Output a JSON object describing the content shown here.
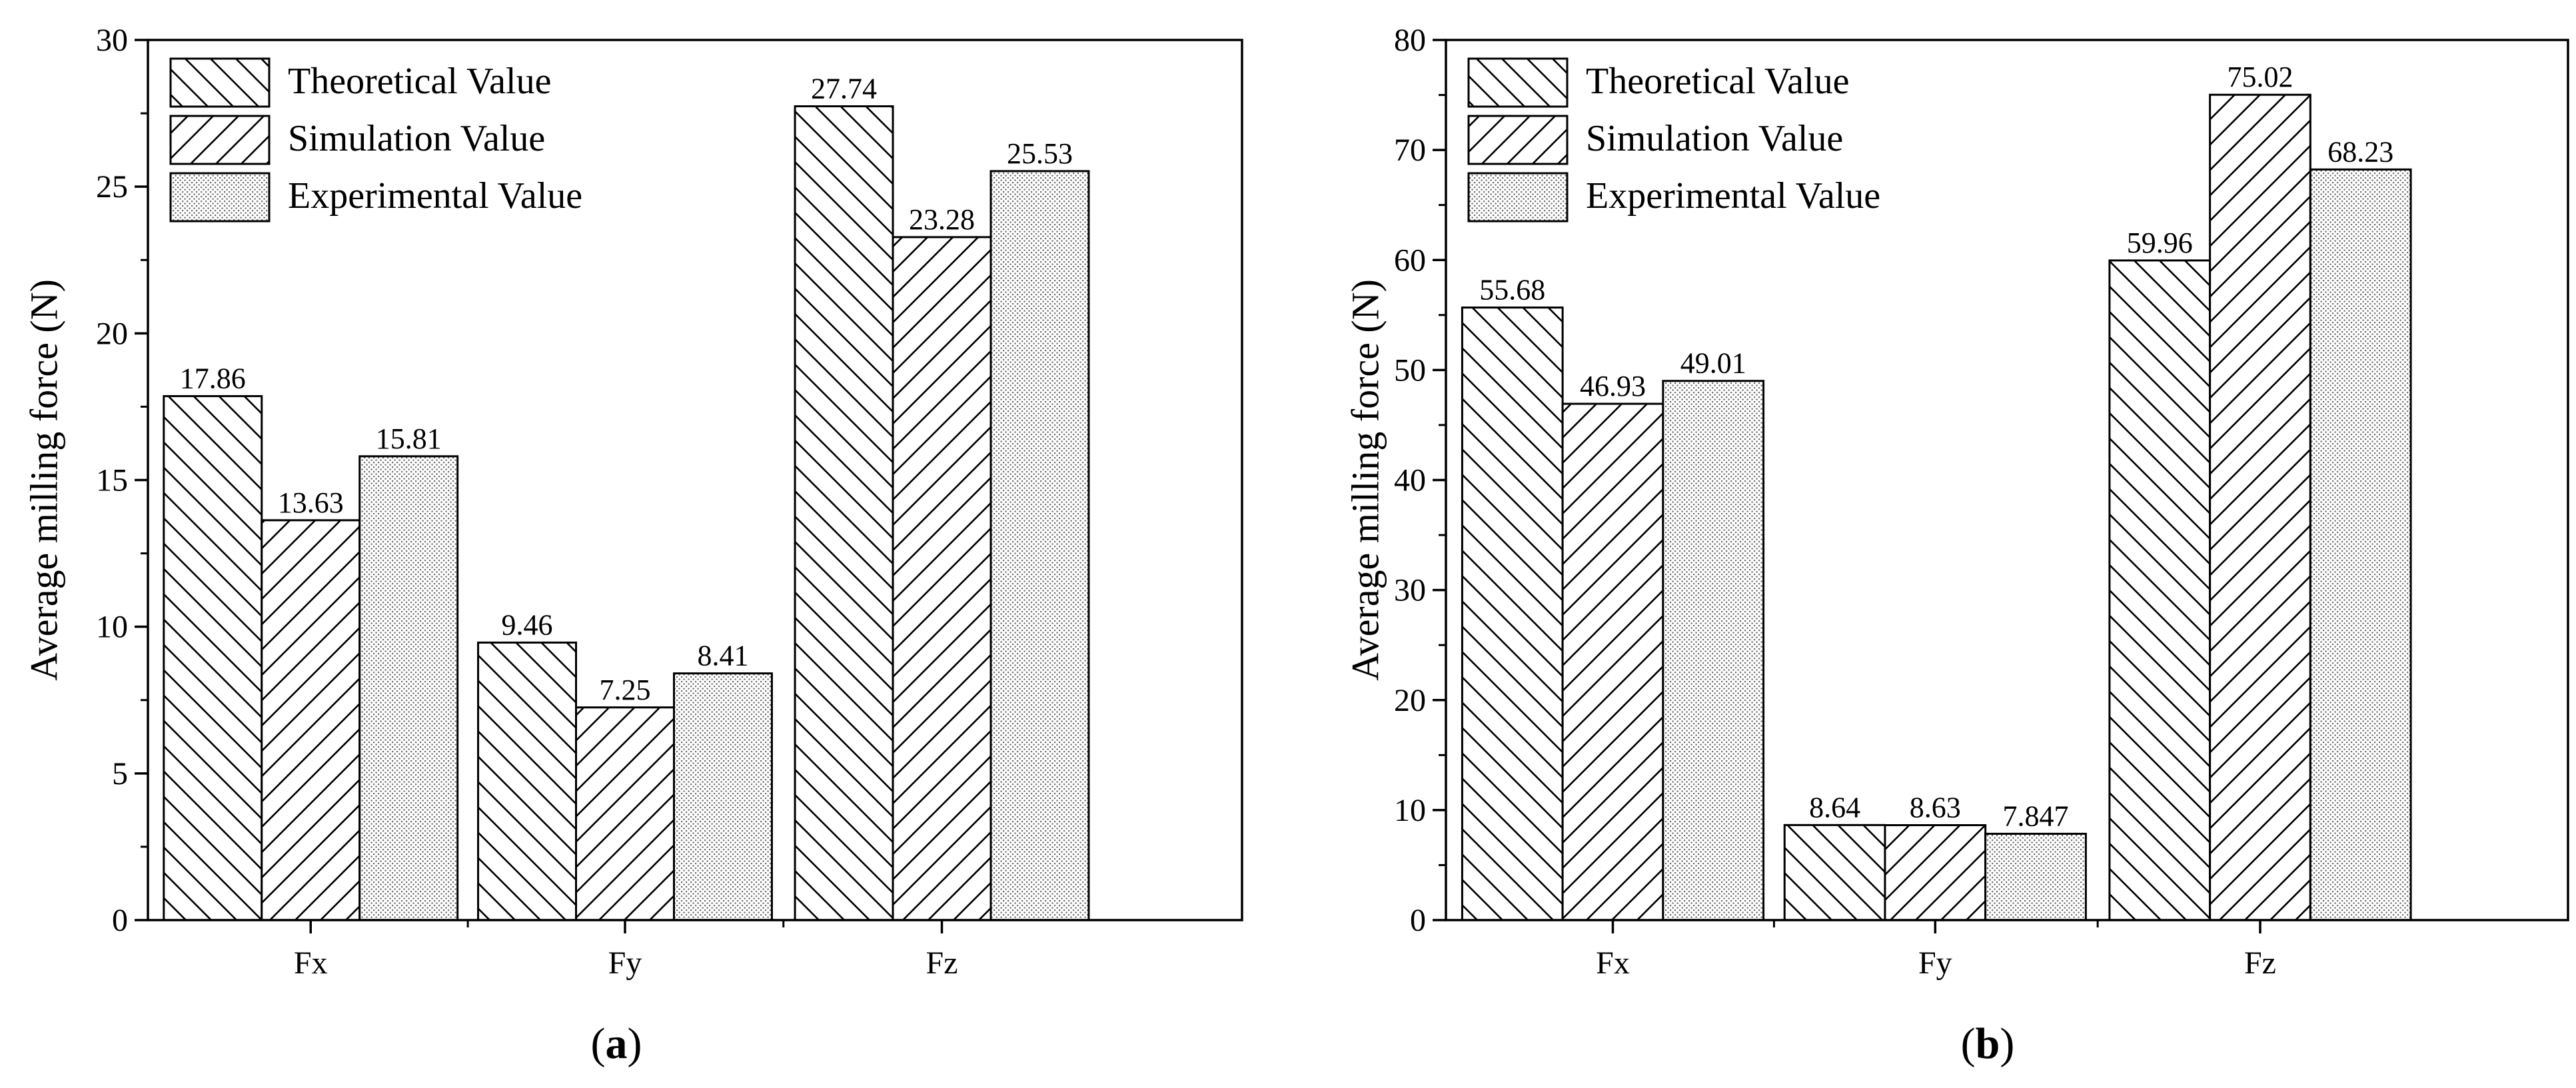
{
  "chart_data": [
    {
      "panel": "(a)",
      "type": "bar",
      "categories": [
        "Fx",
        "Fy",
        "Fz"
      ],
      "series": [
        {
          "name": "Theoretical Value",
          "pattern": "hatch-backslash",
          "values": [
            17.86,
            9.46,
            27.74
          ],
          "labels": [
            "17.86",
            "9.46",
            "27.74"
          ]
        },
        {
          "name": "Simulation Value",
          "pattern": "hatch-slash",
          "values": [
            13.63,
            7.25,
            23.28
          ],
          "labels": [
            "13.63",
            "7.25",
            "23.28"
          ]
        },
        {
          "name": "Experimental Value",
          "pattern": "dots",
          "values": [
            15.81,
            8.41,
            25.53
          ],
          "labels": [
            "15.81",
            "8.41",
            "25.53"
          ]
        }
      ],
      "ylabel": "Average milling force (N)",
      "xlabel": "",
      "ylim": [
        0,
        30
      ],
      "yticks": [
        0,
        5,
        10,
        15,
        20,
        25,
        30
      ],
      "legend_position": "top-left",
      "grid": false
    },
    {
      "panel": "(b)",
      "type": "bar",
      "categories": [
        "Fx",
        "Fy",
        "Fz"
      ],
      "series": [
        {
          "name": "Theoretical Value",
          "pattern": "hatch-backslash",
          "values": [
            55.68,
            8.64,
            59.96
          ],
          "labels": [
            "55.68",
            "8.64",
            "59.96"
          ]
        },
        {
          "name": "Simulation Value",
          "pattern": "hatch-slash",
          "values": [
            46.93,
            8.63,
            75.02
          ],
          "labels": [
            "46.93",
            "8.63",
            "75.02"
          ]
        },
        {
          "name": "Experimental Value",
          "pattern": "dots",
          "values": [
            49.01,
            7.847,
            68.23
          ],
          "labels": [
            "49.01",
            "7.847",
            "68.23"
          ]
        }
      ],
      "ylabel": "Average milling force (N)",
      "xlabel": "",
      "ylim": [
        0,
        80
      ],
      "yticks": [
        0,
        10,
        20,
        30,
        40,
        50,
        60,
        70,
        80
      ],
      "legend_position": "top-left",
      "grid": false
    }
  ],
  "colors": {
    "line": "#000000",
    "background": "#ffffff",
    "dot_fill": "#d8d8d8"
  }
}
